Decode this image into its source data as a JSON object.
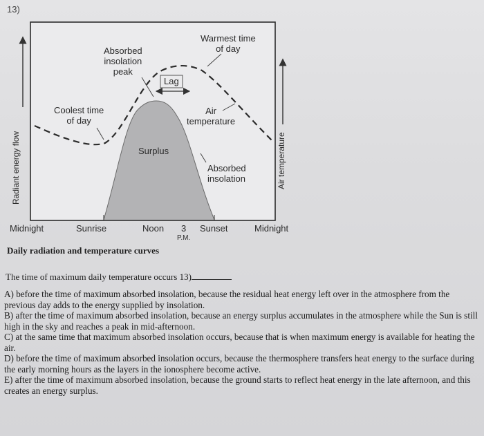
{
  "question_number": "13)",
  "diagram": {
    "labels": {
      "absorbed_peak": [
        "Absorbed",
        "insolation",
        "peak"
      ],
      "lag": "Lag",
      "warmest": [
        "Warmest time",
        "of day"
      ],
      "coolest": [
        "Coolest time",
        "of day"
      ],
      "air_temperature": [
        "Air",
        "temperature"
      ],
      "surplus": "Surplus",
      "absorbed_insolation": [
        "Absorbed",
        "insolation"
      ],
      "radiant_axis": "Radiant energy flow",
      "air_temp_axis": "Air temperature"
    },
    "x_axis": {
      "midnight_left": "Midnight",
      "sunrise": "Sunrise",
      "noon": "Noon",
      "three": "3",
      "pm": "P.M.",
      "sunset": "Sunset",
      "midnight_right": "Midnight"
    },
    "colors": {
      "surplus_fill": "#b3b3b5",
      "frame": "#2b2b2b",
      "panel": "#ebebed"
    }
  },
  "caption": "Daily radiation and temperature curves",
  "question": {
    "text": "The time of maximum daily temperature occurs",
    "number": "13)"
  },
  "choices": [
    "A) before the time of maximum absorbed insolation, because the residual heat energy left over in the atmosphere from the previous day adds to the energy supplied by insolation.",
    "B) after the time of maximum absorbed insolation, because an energy surplus accumulates in the atmosphere while the Sun is still high in the sky and reaches a peak in mid-afternoon.",
    "C) at the same time that maximum absorbed insolation occurs, because that is when maximum energy is available for heating the air.",
    "D) before the time of maximum absorbed insolation occurs, because the thermosphere transfers heat energy to the surface during the early morning hours as the layers in the ionosphere become active.",
    "E) after the time of maximum absorbed insolation, because the ground starts to reflect heat energy in the late afternoon, and this creates an energy surplus."
  ]
}
